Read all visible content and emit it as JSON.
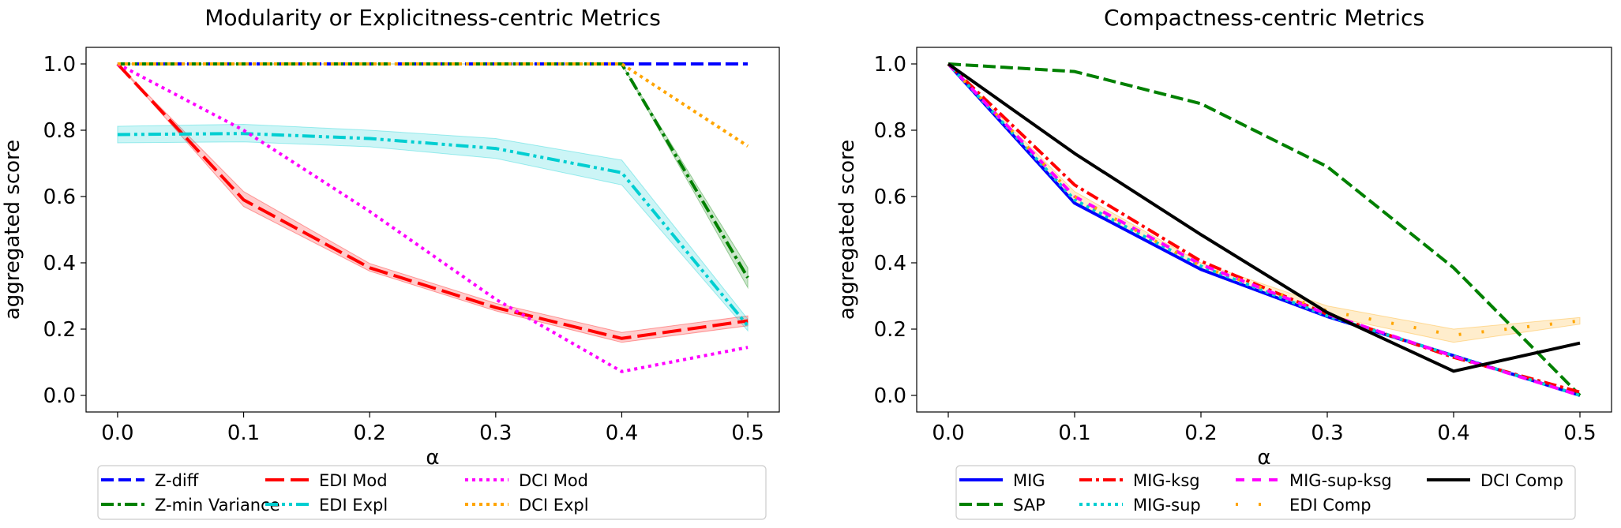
{
  "chart_data": [
    {
      "type": "line",
      "title": "Modularity or Explicitness-centric Metrics",
      "xlabel": "α",
      "ylabel": "aggregated score",
      "xlim": [
        -0.025,
        0.525
      ],
      "ylim": [
        -0.05,
        1.05
      ],
      "xticks": [
        0.0,
        0.1,
        0.2,
        0.3,
        0.4,
        0.5
      ],
      "xtick_labels": [
        "0.0",
        "0.1",
        "0.2",
        "0.3",
        "0.4",
        "0.5"
      ],
      "yticks": [
        0.0,
        0.2,
        0.4,
        0.6,
        0.8,
        1.0
      ],
      "ytick_labels": [
        "0.0",
        "0.2",
        "0.4",
        "0.6",
        "0.8",
        "1.0"
      ],
      "legend_position": "below",
      "legend_columns": 4,
      "x": [
        0.0,
        0.1,
        0.2,
        0.3,
        0.4,
        0.5
      ],
      "series": [
        {
          "name": "Z-diff",
          "color": "#0000ff",
          "style": "dashed",
          "values": [
            1.0,
            1.0,
            1.0,
            1.0,
            1.0,
            1.0
          ]
        },
        {
          "name": "Z-min Variance",
          "color": "#008000",
          "style": "dashdot",
          "values": [
            1.0,
            1.0,
            1.0,
            1.0,
            1.0,
            0.355
          ],
          "band": [
            [
              1.0,
              1.0
            ],
            [
              1.0,
              1.0
            ],
            [
              1.0,
              1.0
            ],
            [
              1.0,
              1.0
            ],
            [
              1.0,
              1.0
            ],
            [
              0.325,
              0.385
            ]
          ]
        },
        {
          "name": "EDI Mod",
          "color": "#ff0000",
          "style": "longdash",
          "values": [
            1.0,
            0.59,
            0.385,
            0.265,
            0.172,
            0.225
          ],
          "band": [
            [
              1.0,
              1.0
            ],
            [
              0.57,
              0.615
            ],
            [
              0.375,
              0.398
            ],
            [
              0.255,
              0.278
            ],
            [
              0.16,
              0.19
            ],
            [
              0.21,
              0.24
            ]
          ]
        },
        {
          "name": "EDI Expl",
          "color": "#00ced1",
          "style": "dashdotdot",
          "values": [
            0.787,
            0.79,
            0.775,
            0.745,
            0.672,
            0.21
          ],
          "band": [
            [
              0.762,
              0.812
            ],
            [
              0.765,
              0.818
            ],
            [
              0.75,
              0.8
            ],
            [
              0.715,
              0.775
            ],
            [
              0.635,
              0.71
            ],
            [
              0.195,
              0.23
            ]
          ]
        },
        {
          "name": "DCI Mod",
          "color": "#ff00ff",
          "style": "dotted",
          "values": [
            1.0,
            0.8,
            0.555,
            0.29,
            0.072,
            0.145
          ]
        },
        {
          "name": "DCI Expl",
          "color": "#ffa500",
          "style": "dotted",
          "values": [
            1.0,
            1.0,
            1.0,
            1.0,
            1.0,
            0.752
          ]
        }
      ],
      "legend_order": [
        "Z-diff",
        "Z-min Variance",
        "EDI Mod",
        "EDI Expl",
        "DCI Mod",
        "DCI Expl"
      ]
    },
    {
      "type": "line",
      "title": "Compactness-centric Metrics",
      "xlabel": "α",
      "ylabel": "aggregated score",
      "xlim": [
        -0.025,
        0.525
      ],
      "ylim": [
        -0.05,
        1.05
      ],
      "xticks": [
        0.0,
        0.1,
        0.2,
        0.3,
        0.4,
        0.5
      ],
      "xtick_labels": [
        "0.0",
        "0.1",
        "0.2",
        "0.3",
        "0.4",
        "0.5"
      ],
      "yticks": [
        0.0,
        0.2,
        0.4,
        0.6,
        0.8,
        1.0
      ],
      "ytick_labels": [
        "0.0",
        "0.2",
        "0.4",
        "0.6",
        "0.8",
        "1.0"
      ],
      "legend_position": "below",
      "legend_columns": 4,
      "x": [
        0.0,
        0.1,
        0.2,
        0.3,
        0.4,
        0.5
      ],
      "series": [
        {
          "name": "MIG",
          "color": "#0000ff",
          "style": "solid",
          "values": [
            1.0,
            0.58,
            0.38,
            0.238,
            0.12,
            0.0
          ]
        },
        {
          "name": "SAP",
          "color": "#008000",
          "style": "dashed",
          "values": [
            1.0,
            0.977,
            0.88,
            0.69,
            0.385,
            0.0
          ]
        },
        {
          "name": "MIG-ksg",
          "color": "#ff0000",
          "style": "dashdot",
          "values": [
            1.0,
            0.635,
            0.405,
            0.245,
            0.115,
            0.01
          ]
        },
        {
          "name": "MIG-sup",
          "color": "#00ced1",
          "style": "dotted",
          "values": [
            1.0,
            0.59,
            0.39,
            0.24,
            0.12,
            0.0
          ]
        },
        {
          "name": "MIG-sup-ksg",
          "color": "#ff00ff",
          "style": "loosedash",
          "values": [
            1.0,
            0.6,
            0.395,
            0.245,
            0.118,
            0.0
          ]
        },
        {
          "name": "EDI Comp",
          "color": "#ffa500",
          "style": "sparsedot",
          "values": [
            1.0,
            0.6,
            0.39,
            0.255,
            0.182,
            0.225
          ],
          "band": [
            [
              1.0,
              1.0
            ],
            [
              0.585,
              0.615
            ],
            [
              0.38,
              0.4
            ],
            [
              0.24,
              0.27
            ],
            [
              0.16,
              0.2
            ],
            [
              0.215,
              0.235
            ]
          ]
        },
        {
          "name": "DCI Comp",
          "color": "#000000",
          "style": "solid",
          "values": [
            1.0,
            0.73,
            0.485,
            0.25,
            0.073,
            0.158
          ]
        }
      ],
      "legend_order": [
        "MIG",
        "SAP",
        "MIG-ksg",
        "MIG-sup",
        "MIG-sup-ksg",
        "EDI Comp",
        "DCI Comp"
      ]
    }
  ]
}
